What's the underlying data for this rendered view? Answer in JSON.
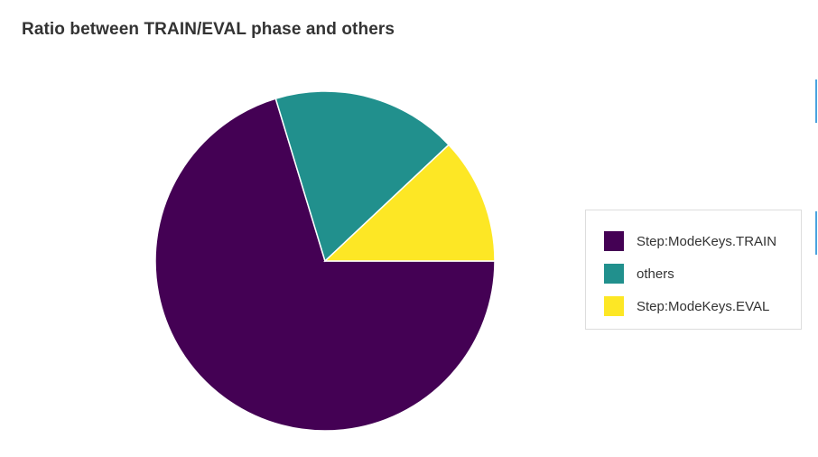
{
  "chart_data": {
    "type": "pie",
    "title": "Ratio between TRAIN/EVAL phase and others",
    "slices": [
      {
        "label": "Step:ModeKeys.TRAIN",
        "value": 70.3,
        "color": "#440154"
      },
      {
        "label": "others",
        "value": 17.7,
        "color": "#21908d"
      },
      {
        "label": "Step:ModeKeys.EVAL",
        "value": 12.0,
        "color": "#fde725"
      }
    ],
    "start_angle_deg": 0,
    "direction": "clockwise",
    "legend": "right",
    "slice_border_color": "#ffffff"
  },
  "accent_color": "#4aa3df"
}
